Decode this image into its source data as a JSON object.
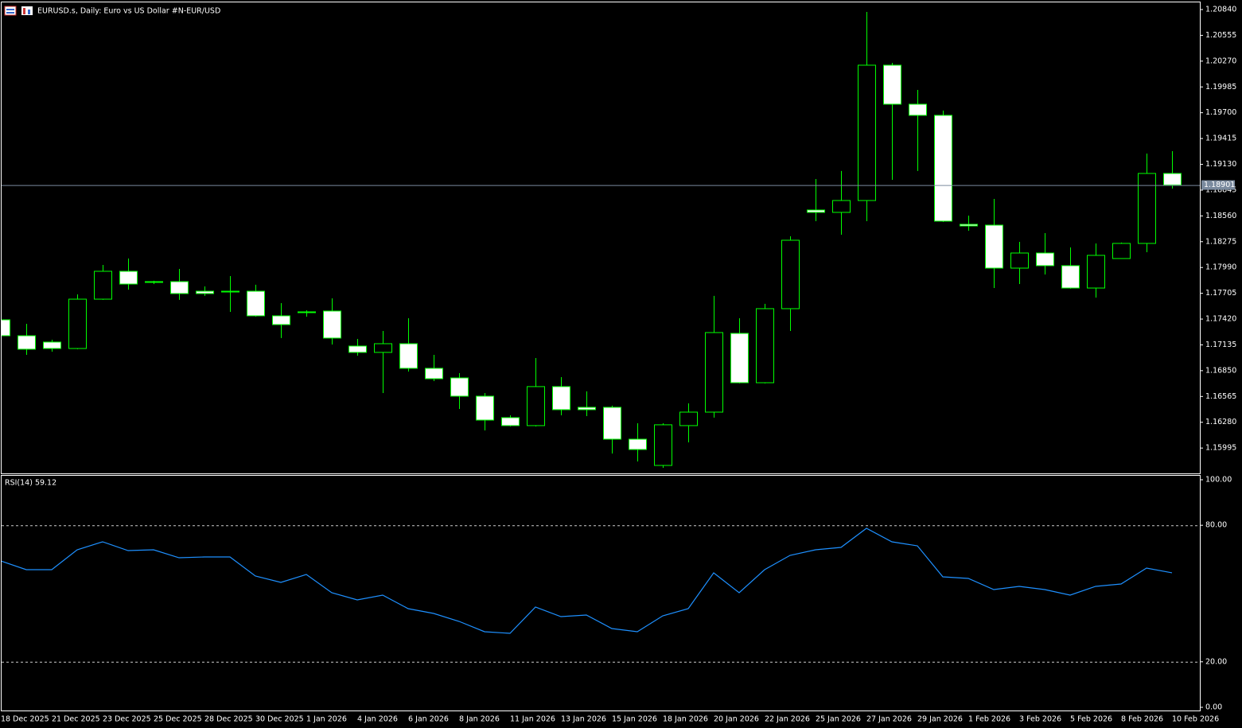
{
  "chart_data": [
    {
      "type": "candlestick",
      "title": "EURUSD.s, Daily:  Euro vs US Dollar #N-EUR/USD",
      "categories": [
        "18 Dec 2025",
        null,
        "21 Dec 2025",
        null,
        "23 Dec 2025",
        null,
        "25 Dec 2025",
        null,
        "28 Dec 2025",
        null,
        "30 Dec 2025",
        null,
        "1 Jan 2026",
        null,
        "4 Jan 2026",
        null,
        "6 Jan 2026",
        null,
        "8 Jan 2026",
        null,
        "11 Jan 2026",
        null,
        "13 Jan 2026",
        null,
        "15 Jan 2026",
        null,
        "18 Jan 2026",
        null,
        "20 Jan 2026",
        null,
        "22 Jan 2026",
        null,
        "25 Jan 2026",
        null,
        "27 Jan 2026",
        null,
        "29 Jan 2026",
        null,
        "1 Feb 2026",
        null,
        "3 Feb 2026",
        null,
        "5 Feb 2026",
        null,
        "8 Feb 2026",
        null,
        "10 Feb 2026"
      ],
      "open": [
        1.17412,
        1.17236,
        1.17166,
        1.17095,
        1.1764,
        1.17948,
        1.17834,
        1.17834,
        1.17728,
        1.17728,
        1.17728,
        1.17456,
        1.175,
        1.17509,
        1.17122,
        1.17052,
        1.17148,
        1.16876,
        1.1677,
        1.16568,
        1.16331,
        1.16243,
        1.16674,
        1.16445,
        1.16445,
        1.16093,
        1.15803,
        1.16243,
        1.16392,
        1.17262,
        1.16717,
        1.17535,
        1.18625,
        1.18599,
        1.1873,
        1.20225,
        1.19794,
        1.19671,
        1.18467,
        1.18458,
        1.17983,
        1.1815,
        1.1801,
        1.17763,
        1.18089,
        1.18256,
        1.19029
      ],
      "high": [
        1.17429,
        1.17368,
        1.17192,
        1.17693,
        1.18018,
        1.18089,
        1.17843,
        1.17974,
        1.17781,
        1.17895,
        1.17799,
        1.17596,
        1.17517,
        1.17649,
        1.17201,
        1.17289,
        1.17429,
        1.17025,
        1.16823,
        1.16603,
        1.16357,
        1.1699,
        1.16779,
        1.16621,
        1.16463,
        1.16269,
        1.16269,
        1.16489,
        1.17676,
        1.17429,
        1.17588,
        1.18335,
        1.18968,
        1.19056,
        1.20814,
        1.20251,
        1.19952,
        1.19724,
        1.18563,
        1.18748,
        1.18273,
        1.1837,
        1.18212,
        1.18256,
        1.18265,
        1.19249,
        1.19275
      ],
      "low": [
        1.17227,
        1.17025,
        1.1706,
        1.17087,
        1.17632,
        1.17746,
        1.17807,
        1.17632,
        1.17676,
        1.175,
        1.17447,
        1.1721,
        1.17447,
        1.17139,
        1.17016,
        1.16603,
        1.1684,
        1.16735,
        1.16427,
        1.1619,
        1.16234,
        1.16234,
        1.16357,
        1.16348,
        1.15935,
        1.15847,
        1.15777,
        1.16058,
        1.16331,
        1.16709,
        1.16709,
        1.17289,
        1.18502,
        1.18352,
        1.18502,
        1.18959,
        1.19056,
        1.18493,
        1.18396,
        1.17763,
        1.17807,
        1.17913,
        1.17755,
        1.17658,
        1.18089,
        1.18159,
        1.18862
      ],
      "close": [
        1.17236,
        1.17087,
        1.17095,
        1.1764,
        1.17948,
        1.17807,
        1.17825,
        1.17702,
        1.17702,
        1.1772,
        1.17456,
        1.17359,
        1.17491,
        1.1721,
        1.17052,
        1.17148,
        1.16876,
        1.16761,
        1.16568,
        1.16304,
        1.16243,
        1.16674,
        1.16419,
        1.16419,
        1.16093,
        1.15979,
        1.16252,
        1.16392,
        1.17271,
        1.16717,
        1.17535,
        1.18291,
        1.18599,
        1.1873,
        1.20225,
        1.19794,
        1.19671,
        1.18502,
        1.18449,
        1.17983,
        1.1815,
        1.1801,
        1.17763,
        1.18124,
        1.18256,
        1.19029,
        1.18901
      ],
      "current_price": 1.18901,
      "ylim": [
        1.15715,
        1.20919
      ],
      "yticks": [
        {
          "value": 1.2084,
          "label": "1.20840"
        },
        1.20555,
        {
          "value": 1.2027,
          "label": "1.20270"
        },
        1.19985,
        {
          "value": 1.197,
          "label": "1.19700"
        },
        1.19415,
        {
          "value": 1.1913,
          "label": "1.19130"
        },
        1.18845,
        {
          "value": 1.1856,
          "label": "1.18560"
        },
        1.18275,
        {
          "value": 1.1799,
          "label": "1.17990"
        },
        1.17705,
        {
          "value": 1.1742,
          "label": "1.17420"
        },
        1.17135,
        {
          "value": 1.1685,
          "label": "1.16850"
        },
        1.16565,
        {
          "value": 1.1628,
          "label": "1.16280"
        },
        1.15995
      ],
      "up_color": "#000000",
      "down_color": "#ffffff",
      "edge_color": "#00ff00",
      "price_line_color": "#7a8a9e"
    },
    {
      "type": "line",
      "title": "RSI(14) 59.12",
      "values": [
        64.34,
        60.49,
        60.49,
        69.23,
        72.73,
        68.88,
        69.23,
        65.73,
        66.08,
        66.08,
        57.69,
        54.9,
        58.39,
        50.35,
        47.2,
        49.3,
        43.36,
        41.26,
        37.76,
        33.22,
        32.52,
        44.06,
        39.86,
        40.56,
        34.62,
        33.22,
        40.21,
        43.36,
        59.09,
        50.35,
        60.49,
        66.78,
        69.23,
        70.28,
        78.67,
        72.73,
        70.98,
        57.34,
        56.64,
        51.75,
        53.15,
        51.75,
        49.3,
        53.15,
        54.2,
        61.19,
        59.12
      ],
      "color": "#1e90ff",
      "ylim": [
        -1.4,
        101.75
      ],
      "yticks": [
        {
          "value": 100,
          "label": "100.00"
        },
        {
          "value": 80,
          "label": "80.00"
        },
        {
          "value": 20,
          "label": "20.00"
        },
        {
          "value": 0,
          "label": "0.00"
        }
      ],
      "levels": [
        80,
        20
      ]
    }
  ]
}
